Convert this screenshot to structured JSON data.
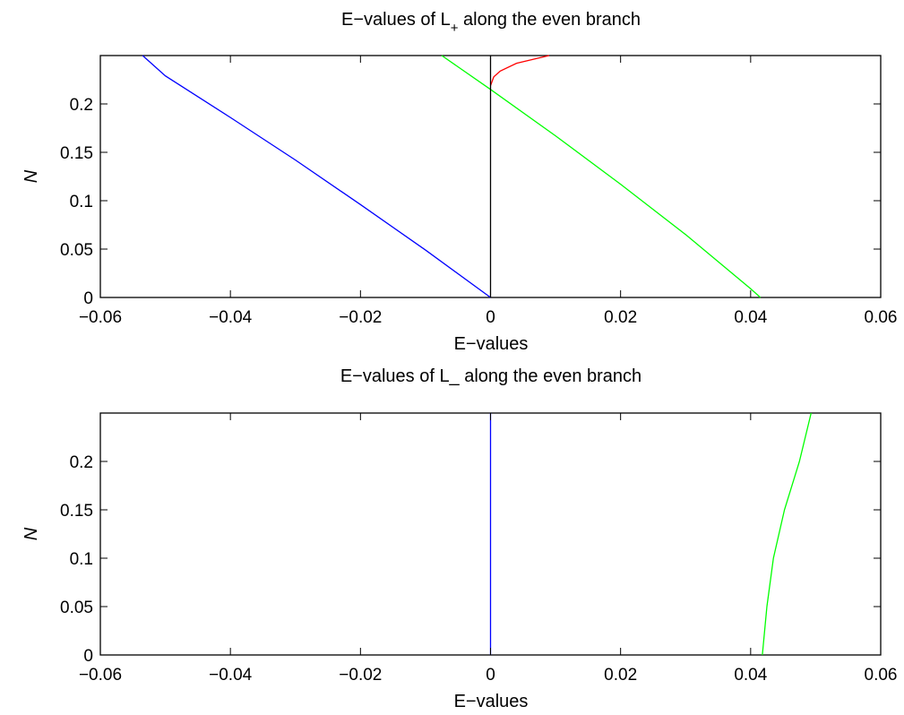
{
  "chart_data": [
    {
      "type": "line",
      "title": "E−values of L",
      "title_subscript": "+",
      "title_suffix": " along the even branch",
      "xlabel": "E−values",
      "ylabel": "N",
      "xlim": [
        -0.06,
        0.06
      ],
      "ylim": [
        0,
        0.25
      ],
      "xticks": [
        -0.06,
        -0.04,
        -0.02,
        0,
        0.02,
        0.04,
        0.06
      ],
      "xtick_labels": [
        "−0.06",
        "−0.04",
        "−0.02",
        "0",
        "0.02",
        "0.04",
        "0.06"
      ],
      "yticks": [
        0,
        0.05,
        0.1,
        0.15,
        0.2
      ],
      "ytick_labels": [
        "0",
        "0.05",
        "0.1",
        "0.15",
        "0.2"
      ],
      "grid": false,
      "series": [
        {
          "color": "#0000ff",
          "x": [
            0,
            -0.01,
            -0.02,
            -0.03,
            -0.04,
            -0.05,
            -0.0535
          ],
          "y": [
            0,
            0.049,
            0.096,
            0.142,
            0.186,
            0.229,
            0.25
          ]
        },
        {
          "color": "#00ff00",
          "x": [
            0.0415,
            0.04,
            0.03,
            0.02,
            0.01,
            0,
            -0.0075
          ],
          "y": [
            0,
            0.009,
            0.065,
            0.117,
            0.167,
            0.215,
            0.25
          ]
        },
        {
          "color": "#ff0000",
          "x": [
            0,
            0.0005,
            0.0015,
            0.004,
            0.009
          ],
          "y": [
            0.219,
            0.228,
            0.234,
            0.242,
            0.25
          ]
        },
        {
          "color": "#000000",
          "x": [
            0,
            0
          ],
          "y": [
            0,
            0.25
          ]
        }
      ]
    },
    {
      "type": "line",
      "title": "E−values of L_ along the even branch",
      "xlabel": "E−values",
      "ylabel": "N",
      "xlim": [
        -0.06,
        0.06
      ],
      "ylim": [
        0,
        0.25
      ],
      "xticks": [
        -0.06,
        -0.04,
        -0.02,
        0,
        0.02,
        0.04,
        0.06
      ],
      "xtick_labels": [
        "−0.06",
        "−0.04",
        "−0.02",
        "0",
        "0.02",
        "0.04",
        "0.06"
      ],
      "yticks": [
        0,
        0.05,
        0.1,
        0.15,
        0.2
      ],
      "ytick_labels": [
        "0",
        "0.05",
        "0.1",
        "0.15",
        "0.2"
      ],
      "grid": false,
      "series": [
        {
          "color": "#0000ff",
          "x": [
            0,
            0
          ],
          "y": [
            0,
            0.25
          ]
        },
        {
          "color": "#00ff00",
          "x": [
            0.0418,
            0.0425,
            0.0435,
            0.0452,
            0.0475,
            0.0493
          ],
          "y": [
            0,
            0.05,
            0.1,
            0.15,
            0.2,
            0.25
          ]
        }
      ]
    }
  ]
}
